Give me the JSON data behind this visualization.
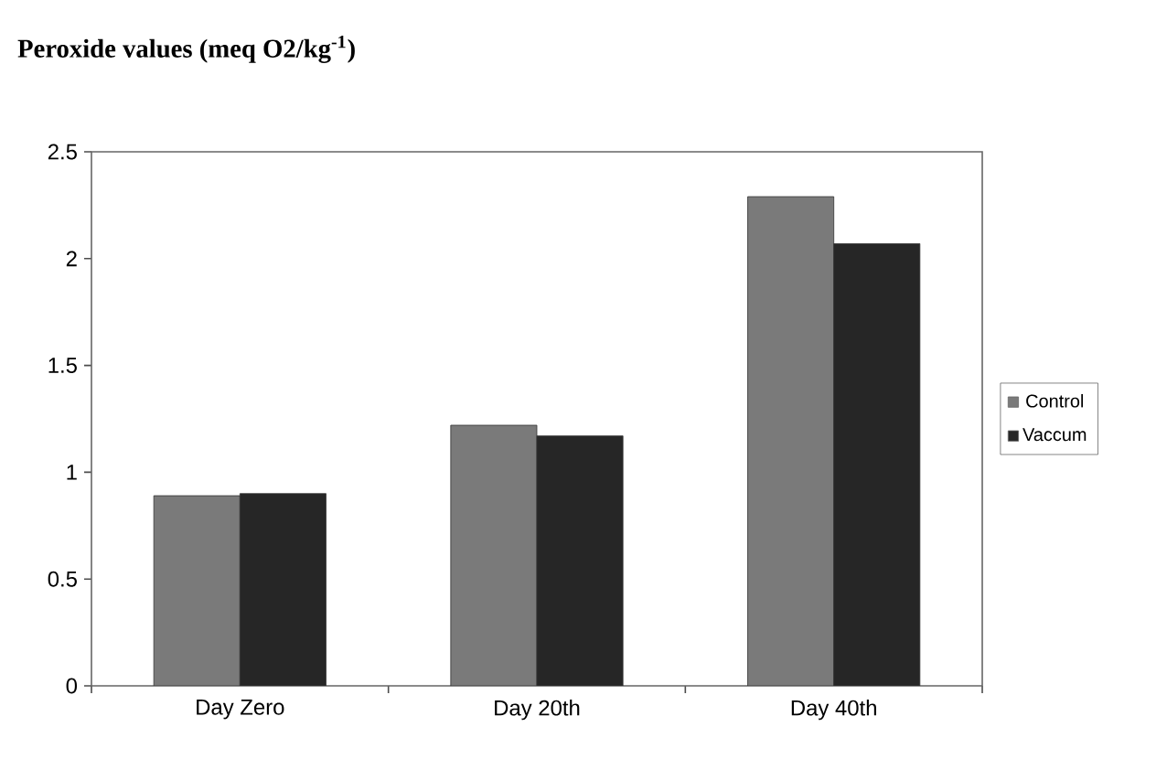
{
  "chart_data": {
    "type": "bar",
    "title": "Peroxide values  (meq O2/kg$^{-1}$)",
    "categories": [
      "Day Zero",
      "Day 20th",
      "Day 40th"
    ],
    "series": [
      {
        "name": "Control",
        "color": "#7a7a7a",
        "values": [
          0.89,
          1.22,
          2.29
        ]
      },
      {
        "name": "Vaccum",
        "color": "#262626",
        "values": [
          0.9,
          1.17,
          2.07
        ]
      }
    ],
    "ylim": [
      0,
      2.5
    ],
    "yticks": [
      0,
      0.5,
      1,
      1.5,
      2,
      2.5
    ],
    "grid": false,
    "legend": "right"
  }
}
